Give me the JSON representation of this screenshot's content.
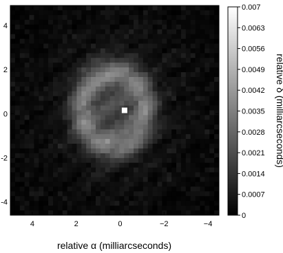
{
  "chart_data": {
    "type": "heatmap",
    "title": "",
    "xlabel": "relative α (milliarcseconds)",
    "ylabel": "",
    "colorbar_label": "relative δ (milliarcseconds)",
    "colormap": "grayscale",
    "xlim": [
      5,
      -4.5
    ],
    "ylim": [
      -4.6,
      4.9
    ],
    "x_ticks": [
      4,
      2,
      0,
      -2,
      -4
    ],
    "x_tick_labels": [
      "4",
      "2",
      "0",
      "−2",
      "−4"
    ],
    "y_ticks": [
      4,
      2,
      0,
      -2,
      -4
    ],
    "y_tick_labels": [
      "4",
      "2",
      "0",
      "-2",
      "-4"
    ],
    "colorbar_range": [
      0,
      0.007
    ],
    "colorbar_ticks": [
      0,
      0.0007,
      0.0014,
      0.0021,
      0.0028,
      0.0035,
      0.0042,
      0.0049,
      0.0056,
      0.0063,
      0.007
    ],
    "colorbar_tick_labels": [
      "0",
      "0.0007",
      "0.0014",
      "0.0021",
      "0.0028",
      "0.0035",
      "0.0042",
      "0.0049",
      "0.0056",
      "0.0063",
      "0.007"
    ],
    "features": {
      "ring_center": [
        0.3,
        0.2
      ],
      "ring_radius": 1.45,
      "ring_peak_value": 0.0026,
      "inner_value": 0.0013,
      "point_source": [
        -0.2,
        0.15
      ],
      "point_source_value": 0.007
    }
  }
}
